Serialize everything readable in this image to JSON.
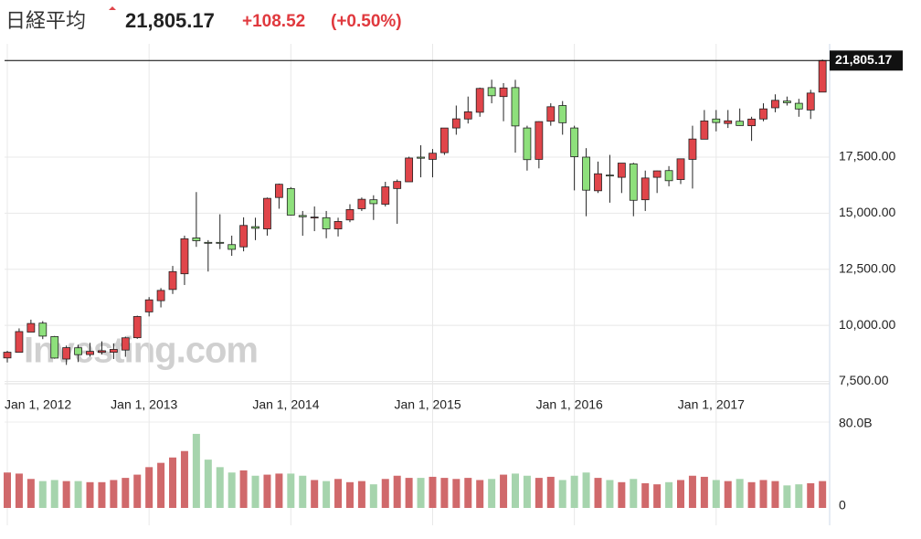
{
  "chart_data": {
    "type": "candlestick",
    "title": "日経平均",
    "last_price": {
      "value": 21805.17,
      "label": "21,805.17"
    },
    "change": "+108.52",
    "change_pct": "(+0.50%)",
    "watermark": "Investing.com",
    "up_color": "#e0454a",
    "down_color": "#8ee07c",
    "volume_up_color": "#d0696b",
    "volume_down_color": "#a6d4ad",
    "x": [
      "2012-01",
      "2012-02",
      "2012-03",
      "2012-04",
      "2012-05",
      "2012-06",
      "2012-07",
      "2012-08",
      "2012-09",
      "2012-10",
      "2012-11",
      "2012-12",
      "2013-01",
      "2013-02",
      "2013-03",
      "2013-04",
      "2013-05",
      "2013-06",
      "2013-07",
      "2013-08",
      "2013-09",
      "2013-10",
      "2013-11",
      "2013-12",
      "2014-01",
      "2014-02",
      "2014-03",
      "2014-04",
      "2014-05",
      "2014-06",
      "2014-07",
      "2014-08",
      "2014-09",
      "2014-10",
      "2014-11",
      "2014-12",
      "2015-01",
      "2015-02",
      "2015-03",
      "2015-04",
      "2015-05",
      "2015-06",
      "2015-07",
      "2015-08",
      "2015-09",
      "2015-10",
      "2015-11",
      "2015-12",
      "2016-01",
      "2016-02",
      "2016-03",
      "2016-04",
      "2016-05",
      "2016-06",
      "2016-07",
      "2016-08",
      "2016-09",
      "2016-10",
      "2016-11",
      "2016-12",
      "2017-01",
      "2017-02",
      "2017-03",
      "2017-04",
      "2017-05",
      "2017-06",
      "2017-07",
      "2017-08",
      "2017-09",
      "2017-10"
    ],
    "open": [
      8549,
      8800,
      9700,
      10100,
      9500,
      8500,
      9000,
      8700,
      8800,
      8800,
      8900,
      9450,
      10600,
      11100,
      11600,
      12300,
      13900,
      13700,
      13700,
      13600,
      13500,
      14400,
      14300,
      15700,
      16100,
      14900,
      14800,
      14800,
      14300,
      14700,
      15200,
      15600,
      15400,
      16100,
      16400,
      17500,
      17400,
      17700,
      18800,
      19200,
      19500,
      20600,
      20200,
      20600,
      18800,
      17400,
      19100,
      19800,
      18800,
      17500,
      16000,
      16700,
      16600,
      17200,
      15600,
      16600,
      16900,
      16500,
      17400,
      18300,
      19200,
      19000,
      19100,
      18900,
      19200,
      19700,
      20000,
      19900,
      19600,
      20400
    ],
    "high": [
      8866,
      9866,
      10255,
      10190,
      9530,
      9100,
      9136,
      9222,
      9288,
      9190,
      9500,
      10433,
      11260,
      11662,
      12650,
      14000,
      15942,
      13800,
      14953,
      14000,
      14817,
      14800,
      15700,
      16320,
      16164,
      15100,
      15300,
      15100,
      14800,
      15400,
      15700,
      15800,
      16400,
      16500,
      17520,
      18030,
      17860,
      18800,
      19800,
      20200,
      20600,
      20952,
      20800,
      20946,
      18900,
      19100,
      19900,
      20000,
      18900,
      17900,
      17300,
      17600,
      17200,
      17250,
      16900,
      16900,
      17100,
      17400,
      18900,
      19600,
      19600,
      19600,
      19668,
      19300,
      19900,
      20300,
      20200,
      20100,
      20500,
      21850
    ],
    "low": [
      8349,
      8800,
      9730,
      9388,
      8513,
      8238,
      8365,
      8600,
      8700,
      8500,
      8600,
      9400,
      10400,
      10800,
      11400,
      11800,
      13500,
      12400,
      13400,
      13100,
      13300,
      13800,
      14000,
      15200,
      14900,
      13995,
      14200,
      13885,
      13964,
      14600,
      15100,
      14700,
      15300,
      14529,
      16400,
      16600,
      16600,
      17600,
      18500,
      19000,
      19300,
      19900,
      19100,
      17700,
      16900,
      17000,
      18900,
      18500,
      16017,
      14865,
      15900,
      15470,
      15900,
      14864,
      15100,
      15900,
      16200,
      16300,
      16100,
      18300,
      18650,
      18800,
      18900,
      18224,
      19100,
      19500,
      19800,
      19300,
      19200,
      20400
    ],
    "close": [
      8803,
      9723,
      10084,
      9521,
      8543,
      9007,
      8695,
      8840,
      8870,
      8928,
      9446,
      10395,
      11138,
      11559,
      12397,
      13861,
      13774,
      13677,
      13668,
      13389,
      14455,
      14327,
      15662,
      16291,
      14915,
      14841,
      14828,
      14304,
      14632,
      15162,
      15621,
      15425,
      16174,
      16414,
      17460,
      17451,
      17674,
      18798,
      19207,
      19520,
      20563,
      20236,
      20585,
      18890,
      17388,
      19083,
      19747,
      19033,
      17518,
      16026,
      16758,
      16666,
      17234,
      15575,
      16569,
      16887,
      16449,
      17425,
      18308,
      19114,
      19041,
      19119,
      18909,
      19197,
      19651,
      20033,
      19925,
      19646,
      20356,
      21805.17
    ],
    "volume": [
      33,
      32,
      27,
      25,
      26,
      25,
      25,
      24,
      24,
      26,
      28,
      31,
      38,
      42,
      47,
      53,
      69,
      45,
      38,
      33,
      35,
      30,
      31,
      32,
      32,
      30,
      26,
      25,
      27,
      24,
      25,
      22,
      27,
      30,
      28,
      28,
      29,
      28,
      27,
      28,
      26,
      27,
      31,
      32,
      30,
      28,
      29,
      26,
      30,
      33,
      28,
      26,
      24,
      27,
      23,
      22,
      24,
      26,
      30,
      29,
      26,
      25,
      27,
      24,
      26,
      25,
      21,
      22,
      23,
      25
    ],
    "ylim": [
      7400,
      22550
    ],
    "yticks": [
      {
        "value": 7500,
        "label": "7,500.00"
      },
      {
        "value": 10000,
        "label": "10,000.00"
      },
      {
        "value": 12500,
        "label": "12,500.00"
      },
      {
        "value": 15000,
        "label": "15,000.00"
      },
      {
        "value": 17500,
        "label": "17,500.00"
      }
    ],
    "volume_ylim": [
      0,
      80
    ],
    "volume_yticks": [
      0,
      {
        "value": 80,
        "label": "80.0B"
      }
    ],
    "xticks": [
      {
        "value": "2012-01",
        "label": "Jan 1, 2012"
      },
      {
        "value": "2013-01",
        "label": "Jan 1, 2013"
      },
      {
        "value": "2014-01",
        "label": "Jan 1, 2014"
      },
      {
        "value": "2015-01",
        "label": "Jan 1, 2015"
      },
      {
        "value": "2016-01",
        "label": "Jan 1, 2016"
      },
      {
        "value": "2017-01",
        "label": "Jan 1, 2017"
      }
    ],
    "grid": true
  }
}
